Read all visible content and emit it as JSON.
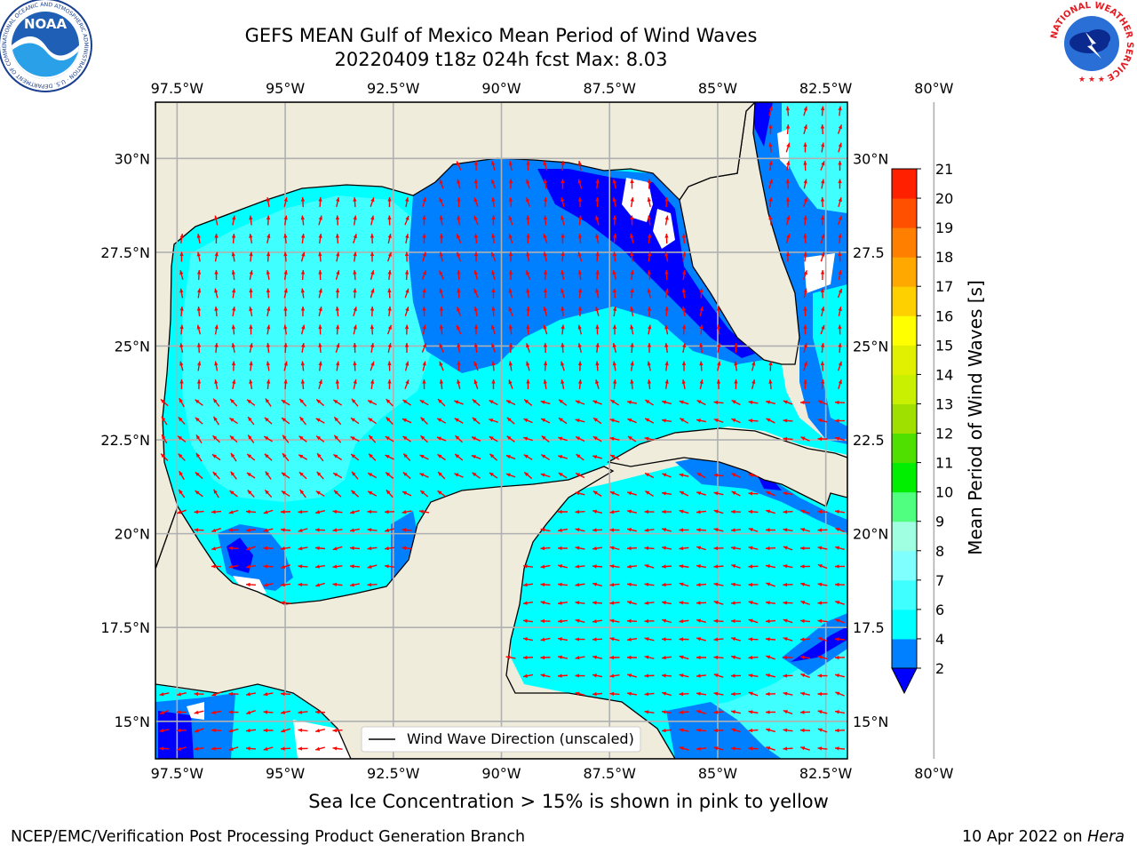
{
  "title": {
    "line1": "GEFS MEAN Gulf of Mexico Mean Period of Wind Waves",
    "line2": "20220409 t18z 024h fcst   Max: 8.03"
  },
  "map": {
    "lon_range": [
      -98.0,
      -82.0
    ],
    "lat_range": [
      14.0,
      31.5
    ],
    "lon_ticks": [
      "97.5°W",
      "95°W",
      "92.5°W",
      "90°W",
      "87.5°W",
      "85°W",
      "82.5°W",
      "80°W"
    ],
    "lat_ticks_left": [
      "30°N",
      "27.5°N",
      "25°N",
      "22.5°N",
      "20°N",
      "17.5°N",
      "15°N"
    ],
    "lat_ticks_right": [
      "30°N",
      "27.5",
      "25°N",
      "22.5",
      "20°N",
      "17.5",
      "15°N"
    ],
    "grid": true,
    "legend_label": "Wind Wave Direction (unscaled)",
    "land_color": "#efecdc",
    "arrow_color": "#ff0000",
    "coast_color": "#000000"
  },
  "colorbar": {
    "label": "Mean Period of Wind Waves [s]",
    "levels": [
      "2",
      "4",
      "6",
      "7",
      "8",
      "9",
      "10",
      "11",
      "12",
      "13",
      "14",
      "15",
      "16",
      "17",
      "18",
      "19",
      "20",
      "21"
    ],
    "colors": [
      "#0000ff",
      "#0080ff",
      "#00ffff",
      "#40ffff",
      "#80ffff",
      "#a0ffe0",
      "#50ff80",
      "#00ee00",
      "#50e000",
      "#a0e000",
      "#c8f000",
      "#e0f000",
      "#ffff00",
      "#ffd000",
      "#ffa800",
      "#ff8000",
      "#ff5000",
      "#ff2000",
      "#ff0000"
    ],
    "under_color": "#0000ff"
  },
  "footer": {
    "note": "Sea Ice Concentration > 15% is shown in pink to yellow",
    "credit": "NCEP/EMC/Verification Post Processing Product Generation Branch",
    "date": "10 Apr 2022 on",
    "machine": "Hera"
  },
  "logos": {
    "left": "NOAA",
    "left_ring": "NATIONAL OCEANIC AND ATMOSPHERIC ADMINISTRATION · U.S. DEPARTMENT OF COMMERCE",
    "right_ring": "NATIONAL WEATHER SERVICE"
  }
}
